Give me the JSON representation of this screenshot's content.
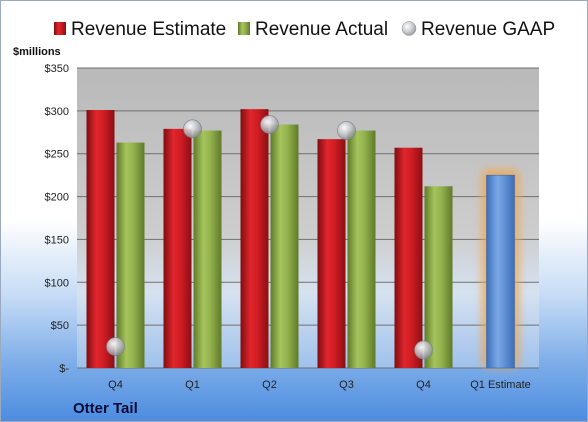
{
  "company": "Otter Tail",
  "colors": {
    "estimate": "#c0161d",
    "actual": "#8ead48",
    "gaap": "#b9bcc2",
    "projection": "#5b8fd8",
    "projection_glow": "#f2a64b"
  },
  "chart_data": {
    "type": "bar",
    "ylabel": "$millions",
    "ylim": [
      0,
      350
    ],
    "yticks": [
      0,
      50,
      100,
      150,
      200,
      250,
      300,
      350
    ],
    "ytick_labels": [
      "$-",
      "$50",
      "$100",
      "$150",
      "$200",
      "$250",
      "$300",
      "$350"
    ],
    "categories": [
      "Q4",
      "Q1",
      "Q2",
      "Q3",
      "Q4",
      "Q1 Estimate"
    ],
    "legend_position": "top",
    "grid": true,
    "series": [
      {
        "name": "Revenue Estimate",
        "kind": "bar",
        "values": [
          301,
          279,
          302,
          267,
          257,
          null
        ]
      },
      {
        "name": "Revenue Actual",
        "kind": "bar",
        "values": [
          263,
          277,
          284,
          277,
          212,
          null
        ]
      },
      {
        "name": "Revenue GAAP",
        "kind": "marker",
        "values": [
          25,
          279,
          284,
          277,
          21,
          null
        ]
      },
      {
        "name": "",
        "kind": "projection",
        "values": [
          null,
          null,
          null,
          null,
          null,
          225
        ]
      }
    ]
  }
}
